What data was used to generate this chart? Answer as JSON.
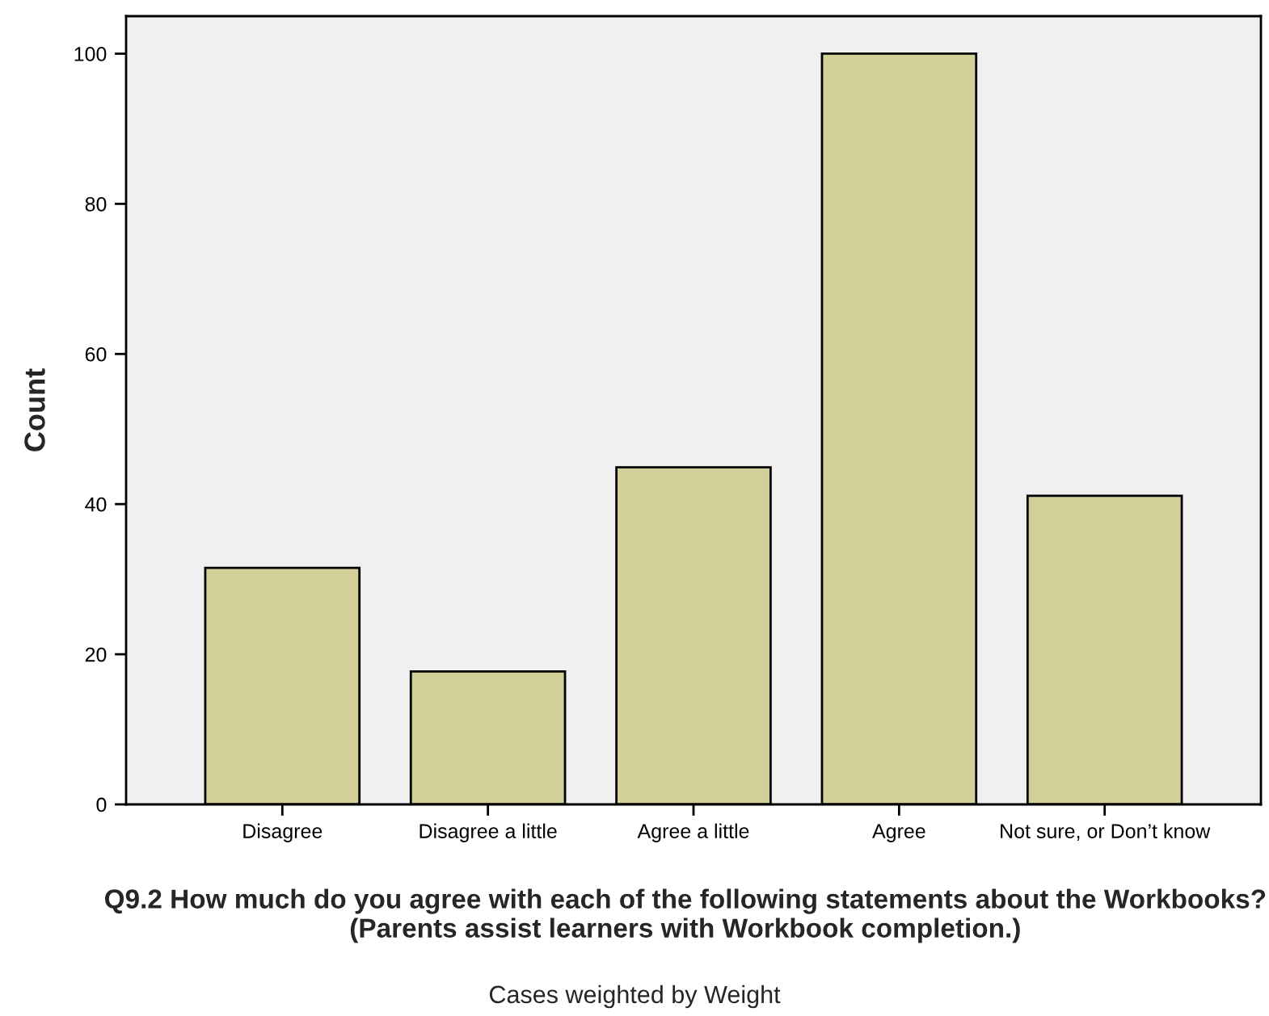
{
  "chart_data": {
    "type": "bar",
    "categories": [
      "Disagree",
      "Disagree a little",
      "Agree a little",
      "Agree",
      "Not sure, or Don’t know"
    ],
    "values": [
      31.5,
      17.7,
      44.9,
      100,
      41.1
    ],
    "color": "#d3cf98",
    "xlabel": "Q9.2 How much do you agree with each of the following statements about the Workbooks? (Parents assist learners with Workbook completion.)",
    "ylabel": "Count",
    "ylim": [
      0,
      105
    ],
    "yticks": [
      0,
      20,
      40,
      60,
      80,
      100
    ],
    "grid": false,
    "annotations": [
      "Cases weighted by Weight"
    ]
  }
}
